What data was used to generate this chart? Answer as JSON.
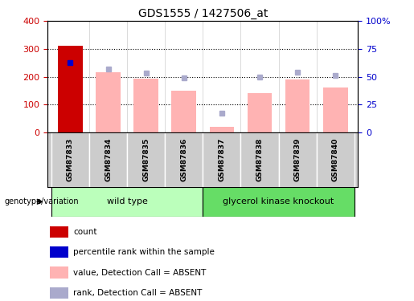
{
  "title": "GDS1555 / 1427506_at",
  "samples": [
    "GSM87833",
    "GSM87834",
    "GSM87835",
    "GSM87836",
    "GSM87837",
    "GSM87838",
    "GSM87839",
    "GSM87840"
  ],
  "bar_values": [
    310,
    215,
    192,
    150,
    20,
    140,
    190,
    160
  ],
  "rank_values": [
    250,
    228,
    213,
    197,
    70,
    198,
    215,
    205
  ],
  "left_ylim": [
    0,
    400
  ],
  "left_yticks": [
    0,
    100,
    200,
    300,
    400
  ],
  "right_ylim": [
    0,
    100
  ],
  "right_yticks": [
    0,
    25,
    50,
    75,
    100
  ],
  "right_yticklabels": [
    "0",
    "25",
    "50",
    "75",
    "100%"
  ],
  "bar_color_first": "#cc0000",
  "bar_color_rest": "#ffb3b3",
  "rank_color_first": "#0000cc",
  "rank_color_rest": "#aaaacc",
  "groups": [
    {
      "label": "wild type",
      "start": 0,
      "end": 3,
      "color": "#bbffbb"
    },
    {
      "label": "glycerol kinase knockout",
      "start": 4,
      "end": 7,
      "color": "#66dd66"
    }
  ],
  "genotype_label": "genotype/variation",
  "legend_items": [
    {
      "color": "#cc0000",
      "label": "count"
    },
    {
      "color": "#0000cc",
      "label": "percentile rank within the sample"
    },
    {
      "color": "#ffb3b3",
      "label": "value, Detection Call = ABSENT"
    },
    {
      "color": "#aaaacc",
      "label": "rank, Detection Call = ABSENT"
    }
  ],
  "tick_label_color_left": "#cc0000",
  "tick_label_color_right": "#0000cc"
}
